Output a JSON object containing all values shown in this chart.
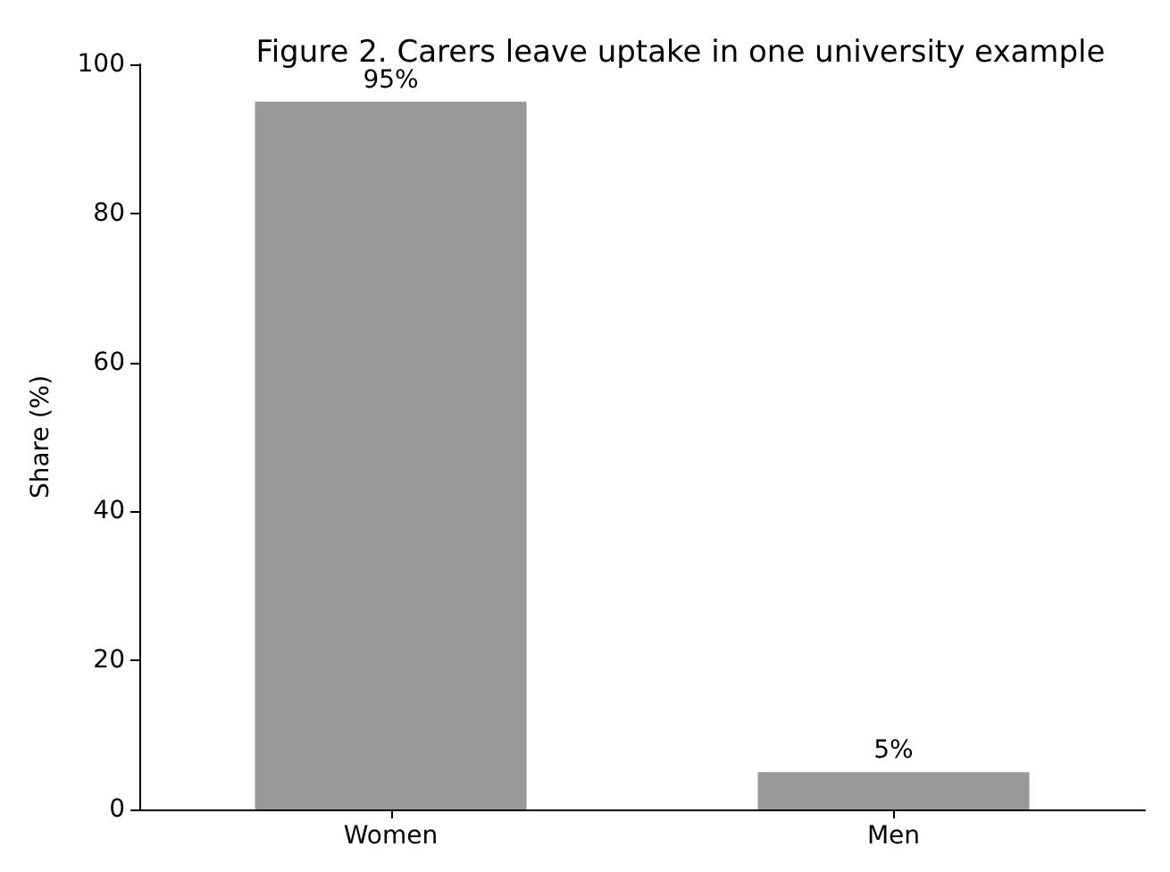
{
  "chart_data": {
    "type": "bar",
    "title": "Figure 2. Carers leave uptake in one university example",
    "ylabel": "Share (%)",
    "categories": [
      "Women",
      "Men"
    ],
    "values": [
      95,
      5
    ],
    "value_labels": [
      "95%",
      "5%"
    ],
    "color": "#999999",
    "ylim": [
      0,
      100
    ],
    "yticks": [
      0,
      20,
      40,
      60,
      80,
      100
    ],
    "grid": false
  }
}
